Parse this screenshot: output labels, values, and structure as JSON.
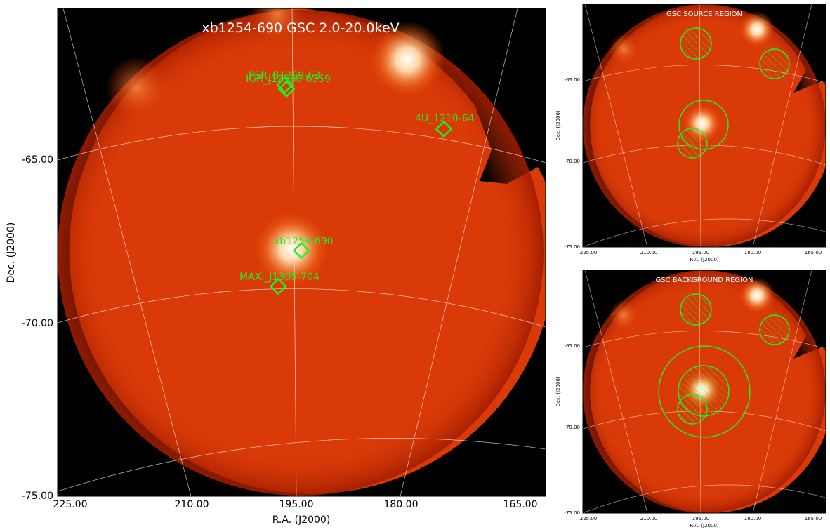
{
  "main": {
    "title": "xb1254-690 GSC 2.0-20.0keV",
    "xlabel": "R.A. (J2000)",
    "ylabel": "Dec. (J2000)",
    "xticks": [
      "225.00",
      "210.00",
      "195.00",
      "180.00",
      "165.00"
    ],
    "yticks": [
      "-65.00",
      "-70.00",
      "-75.00"
    ],
    "sources": [
      {
        "label": "PSR_B1259-63"
      },
      {
        "label": "IGR_J12580-6359"
      },
      {
        "label": "4U_1210-64"
      },
      {
        "label": "xb1254-690"
      },
      {
        "label": "MAXI_J1305-704"
      }
    ]
  },
  "source_panel": {
    "title": "GSC SOURCE REGION",
    "xlabel": "R.A. (J2000)",
    "ylabel": "Dec. (J2000)",
    "xticks": [
      "225.00",
      "210.00",
      "195.00",
      "180.00",
      "165.00"
    ],
    "yticks": [
      "-65.00",
      "-70.00",
      "-75.00"
    ]
  },
  "background_panel": {
    "title": "GSC BACKGROUND REGION",
    "xlabel": "R.A. (J2000)",
    "ylabel": "Dec. (J2000)",
    "xticks": [
      "225.00",
      "210.00",
      "195.00",
      "180.00",
      "165.00"
    ],
    "yticks": [
      "-65.00",
      "-70.00",
      "-75.00"
    ]
  },
  "colors": {
    "background": "#000000",
    "field": "#d93a08",
    "region": "#22ee22",
    "grid": "#ffffff"
  }
}
